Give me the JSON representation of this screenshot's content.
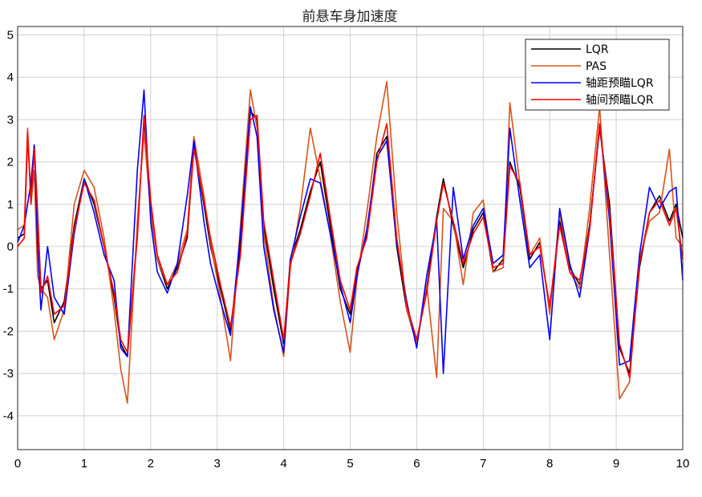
{
  "chart_data": {
    "type": "line",
    "title": "前悬车身加速度",
    "xlabel": "",
    "ylabel": "",
    "xlim": [
      0,
      10
    ],
    "ylim": [
      -4.8,
      5.2
    ],
    "xticks": [
      "0",
      "1",
      "2",
      "3",
      "4",
      "5",
      "6",
      "7",
      "8",
      "9",
      "10"
    ],
    "yticks": [
      "5",
      "4",
      "3",
      "2",
      "1",
      "0",
      "-1",
      "-2",
      "-3",
      "-4"
    ],
    "grid": true,
    "legend_position": "top-right",
    "colors": {
      "LQR": "#000000",
      "PAS": "#d95319",
      "axle_distance": "#0000ff",
      "inter_axle": "#ff0000"
    },
    "series": [
      {
        "name": "LQR",
        "color": "#000000",
        "x": [
          0,
          0.1,
          0.15,
          0.2,
          0.25,
          0.3,
          0.35,
          0.45,
          0.55,
          0.7,
          0.85,
          1.0,
          1.15,
          1.3,
          1.45,
          1.55,
          1.65,
          1.8,
          1.9,
          2.0,
          2.1,
          2.25,
          2.4,
          2.55,
          2.65,
          2.8,
          2.9,
          3.05,
          3.2,
          3.35,
          3.5,
          3.6,
          3.7,
          3.85,
          4.0,
          4.1,
          4.25,
          4.4,
          4.55,
          4.7,
          4.85,
          5.0,
          5.1,
          5.25,
          5.4,
          5.55,
          5.7,
          5.85,
          6.0,
          6.15,
          6.3,
          6.4,
          6.55,
          6.7,
          6.85,
          7.0,
          7.15,
          7.3,
          7.4,
          7.55,
          7.7,
          7.85,
          8.0,
          8.15,
          8.3,
          8.45,
          8.6,
          8.75,
          8.9,
          9.05,
          9.2,
          9.35,
          9.5,
          9.65,
          9.8,
          9.9,
          10.0
        ],
        "y": [
          0.2,
          0.3,
          2.6,
          1.2,
          2.4,
          0.8,
          -1.0,
          -0.8,
          -1.8,
          -1.3,
          0.5,
          1.6,
          1.0,
          0.0,
          -1.2,
          -2.3,
          -2.6,
          0.3,
          3.0,
          1.0,
          -0.3,
          -1.0,
          -0.5,
          0.2,
          2.4,
          1.0,
          0.0,
          -1.0,
          -2.0,
          0.0,
          3.2,
          3.0,
          0.5,
          -1.0,
          -2.3,
          -0.3,
          0.4,
          1.3,
          2.0,
          0.5,
          -1.0,
          -1.6,
          -0.6,
          0.3,
          2.2,
          2.6,
          0.0,
          -1.5,
          -2.3,
          -1.0,
          0.7,
          1.6,
          0.5,
          -0.5,
          0.4,
          0.8,
          -0.6,
          -0.3,
          2.0,
          1.4,
          -0.3,
          0.1,
          -1.5,
          0.6,
          -0.5,
          -0.9,
          0.5,
          2.8,
          1.0,
          -2.4,
          -3.0,
          -0.5,
          0.8,
          1.2,
          0.6,
          1.0,
          0.2
        ]
      },
      {
        "name": "PAS",
        "color": "#d95319",
        "x": [
          0,
          0.1,
          0.15,
          0.2,
          0.25,
          0.3,
          0.35,
          0.45,
          0.55,
          0.7,
          0.85,
          1.0,
          1.15,
          1.3,
          1.45,
          1.55,
          1.65,
          1.8,
          1.9,
          2.0,
          2.1,
          2.25,
          2.4,
          2.55,
          2.65,
          2.8,
          2.9,
          3.05,
          3.2,
          3.35,
          3.5,
          3.6,
          3.7,
          3.85,
          4.0,
          4.1,
          4.25,
          4.4,
          4.55,
          4.7,
          4.85,
          5.0,
          5.1,
          5.25,
          5.4,
          5.55,
          5.7,
          5.85,
          6.0,
          6.15,
          6.3,
          6.4,
          6.55,
          6.7,
          6.85,
          7.0,
          7.15,
          7.3,
          7.4,
          7.55,
          7.7,
          7.85,
          8.0,
          8.15,
          8.3,
          8.45,
          8.6,
          8.75,
          8.9,
          9.05,
          9.2,
          9.35,
          9.5,
          9.65,
          9.8,
          9.9,
          10.0
        ],
        "y": [
          0.4,
          0.5,
          2.8,
          1.0,
          1.8,
          -0.7,
          -1.0,
          -1.2,
          -2.2,
          -1.5,
          1.0,
          1.8,
          1.4,
          0.2,
          -1.5,
          -2.9,
          -3.7,
          0.6,
          2.7,
          0.8,
          -0.3,
          -0.9,
          -0.4,
          0.4,
          2.6,
          1.2,
          0.1,
          -1.2,
          -2.7,
          0.5,
          3.7,
          2.8,
          0.3,
          -1.4,
          -2.6,
          -0.5,
          0.9,
          2.8,
          1.6,
          0.3,
          -1.3,
          -2.5,
          -0.8,
          0.8,
          2.6,
          3.9,
          0.8,
          -1.5,
          -2.3,
          -0.9,
          -3.1,
          0.9,
          0.6,
          -0.9,
          0.8,
          1.1,
          -0.6,
          -0.5,
          3.4,
          1.5,
          -0.2,
          0.2,
          -1.6,
          0.8,
          -0.6,
          -1.0,
          0.9,
          3.3,
          -0.2,
          -3.6,
          -3.2,
          -0.3,
          0.6,
          0.8,
          2.3,
          0.2,
          0.0
        ]
      },
      {
        "name": "轴距预瞄LQR",
        "color": "#0000ff",
        "x": [
          0,
          0.1,
          0.15,
          0.2,
          0.25,
          0.3,
          0.35,
          0.45,
          0.55,
          0.7,
          0.85,
          1.0,
          1.15,
          1.3,
          1.45,
          1.55,
          1.65,
          1.8,
          1.9,
          2.0,
          2.1,
          2.25,
          2.4,
          2.55,
          2.65,
          2.8,
          2.9,
          3.05,
          3.2,
          3.35,
          3.5,
          3.6,
          3.7,
          3.85,
          4.0,
          4.1,
          4.25,
          4.4,
          4.55,
          4.7,
          4.85,
          5.0,
          5.1,
          5.25,
          5.4,
          5.55,
          5.7,
          5.85,
          6.0,
          6.15,
          6.3,
          6.4,
          6.55,
          6.7,
          6.85,
          7.0,
          7.15,
          7.3,
          7.4,
          7.55,
          7.7,
          7.85,
          8.0,
          8.15,
          8.3,
          8.45,
          8.6,
          8.75,
          8.9,
          9.05,
          9.2,
          9.35,
          9.5,
          9.65,
          9.8,
          9.9,
          10.0
        ],
        "y": [
          0.1,
          0.5,
          1.0,
          1.5,
          2.4,
          0.0,
          -1.5,
          0.0,
          -1.2,
          -1.6,
          0.3,
          1.6,
          0.8,
          -0.2,
          -0.8,
          -2.4,
          -2.6,
          1.8,
          3.7,
          0.6,
          -0.6,
          -1.1,
          -0.4,
          1.2,
          2.5,
          0.6,
          -0.4,
          -1.3,
          -2.1,
          0.3,
          3.3,
          2.6,
          0.0,
          -1.5,
          -2.5,
          -0.3,
          0.7,
          1.6,
          1.5,
          0.3,
          -0.9,
          -1.8,
          -0.7,
          0.4,
          2.1,
          2.5,
          0.1,
          -1.3,
          -2.4,
          -0.7,
          0.6,
          -3.0,
          1.4,
          -0.3,
          0.5,
          0.9,
          -0.4,
          -0.2,
          2.8,
          1.1,
          -0.5,
          -0.2,
          -2.2,
          0.9,
          -0.4,
          -1.2,
          0.4,
          2.9,
          0.6,
          -2.8,
          -2.7,
          -0.2,
          1.4,
          0.9,
          1.3,
          1.4,
          -0.8
        ]
      },
      {
        "name": "轴间预瞄LQR",
        "color": "#ff0000",
        "x": [
          0,
          0.1,
          0.15,
          0.2,
          0.25,
          0.3,
          0.35,
          0.45,
          0.55,
          0.7,
          0.85,
          1.0,
          1.15,
          1.3,
          1.45,
          1.55,
          1.65,
          1.8,
          1.9,
          2.0,
          2.1,
          2.25,
          2.4,
          2.55,
          2.65,
          2.8,
          2.9,
          3.05,
          3.2,
          3.35,
          3.5,
          3.6,
          3.7,
          3.85,
          4.0,
          4.1,
          4.25,
          4.4,
          4.55,
          4.7,
          4.85,
          5.0,
          5.1,
          5.25,
          5.4,
          5.55,
          5.7,
          5.85,
          6.0,
          6.15,
          6.3,
          6.4,
          6.55,
          6.7,
          6.85,
          7.0,
          7.15,
          7.3,
          7.4,
          7.55,
          7.7,
          7.85,
          8.0,
          8.15,
          8.3,
          8.45,
          8.6,
          8.75,
          8.9,
          9.05,
          9.2,
          9.35,
          9.5,
          9.65,
          9.8,
          9.9,
          10.0
        ],
        "y": [
          0.0,
          0.2,
          2.7,
          1.0,
          2.3,
          0.7,
          -1.1,
          -0.7,
          -1.6,
          -1.4,
          0.4,
          1.5,
          1.1,
          0.0,
          -1.1,
          -2.2,
          -2.5,
          0.2,
          3.1,
          1.1,
          -0.2,
          -0.9,
          -0.6,
          0.3,
          2.3,
          1.1,
          0.2,
          -0.9,
          -1.9,
          -0.2,
          3.0,
          3.1,
          0.6,
          -0.8,
          -2.2,
          -0.4,
          0.3,
          1.2,
          2.2,
          0.7,
          -0.8,
          -1.5,
          -0.5,
          0.2,
          2.0,
          2.9,
          0.2,
          -1.4,
          -2.2,
          -1.1,
          0.6,
          1.5,
          0.6,
          -0.4,
          0.3,
          0.7,
          -0.5,
          -0.4,
          1.9,
          1.5,
          -0.2,
          0.0,
          -1.4,
          0.5,
          -0.6,
          -0.8,
          0.4,
          2.9,
          0.8,
          -2.3,
          -3.1,
          -0.4,
          0.8,
          1.1,
          0.5,
          0.9,
          -0.3
        ]
      }
    ],
    "legend": [
      "LQR",
      "PAS",
      "轴距预瞄LQR",
      "轴间预瞄LQR"
    ]
  }
}
